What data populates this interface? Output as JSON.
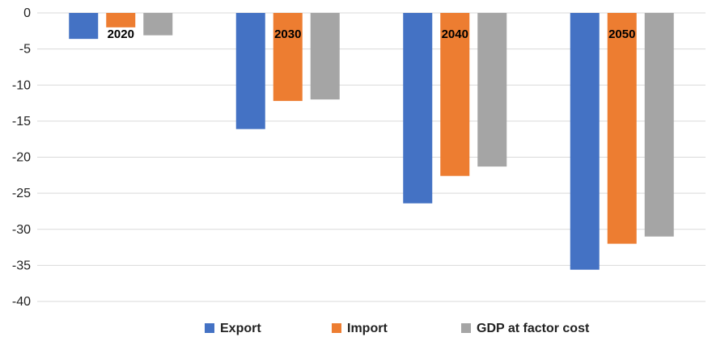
{
  "chart_data": {
    "type": "bar",
    "categories": [
      "2020",
      "2030",
      "2040",
      "2050"
    ],
    "series": [
      {
        "name": "Export",
        "values": [
          -3.6,
          -16.1,
          -26.4,
          -35.6
        ],
        "color": "#4472C4"
      },
      {
        "name": "Import",
        "values": [
          -2.0,
          -12.2,
          -22.6,
          -32.0
        ],
        "color": "#ED7D31"
      },
      {
        "name": "GDP at factor cost",
        "values": [
          -3.1,
          -12.0,
          -21.3,
          -31.0
        ],
        "color": "#A5A5A5"
      }
    ],
    "ylim": [
      -40,
      0
    ],
    "yticks": [
      0,
      -5,
      -10,
      -15,
      -20,
      -25,
      -30,
      -35,
      -40
    ],
    "grid": true,
    "legend_position": "bottom"
  }
}
